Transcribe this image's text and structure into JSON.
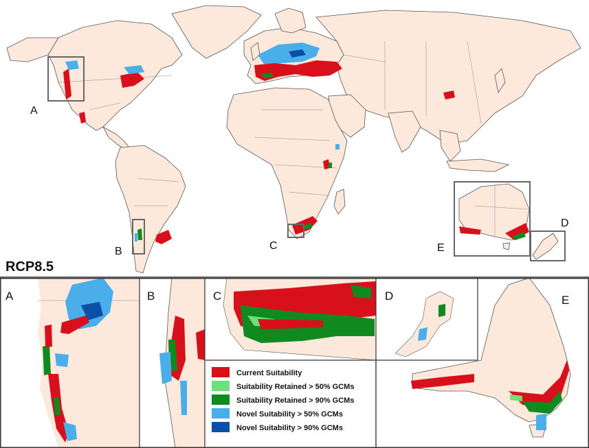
{
  "scenario_label": "RCP8.5",
  "region_labels": {
    "A": "A",
    "B": "B",
    "C": "C",
    "D": "D",
    "E": "E"
  },
  "legend": [
    {
      "label": "Current Suitability",
      "color": "#d8101c"
    },
    {
      "label": "Suitability Retained > 50% GCMs",
      "color": "#6ee07a"
    },
    {
      "label": "Suitability Retained > 90% GCMs",
      "color": "#108a1e"
    },
    {
      "label": "Novel Suitability > 50% GCMs",
      "color": "#4aaeea"
    },
    {
      "label": "Novel Suitability > 90% GCMs",
      "color": "#0a4fa8"
    }
  ],
  "colors": {
    "land": "#fde8dc",
    "ocean": "#ffffff",
    "border": "#8a8a8a",
    "coast": "#555555",
    "frame": "#333333"
  }
}
